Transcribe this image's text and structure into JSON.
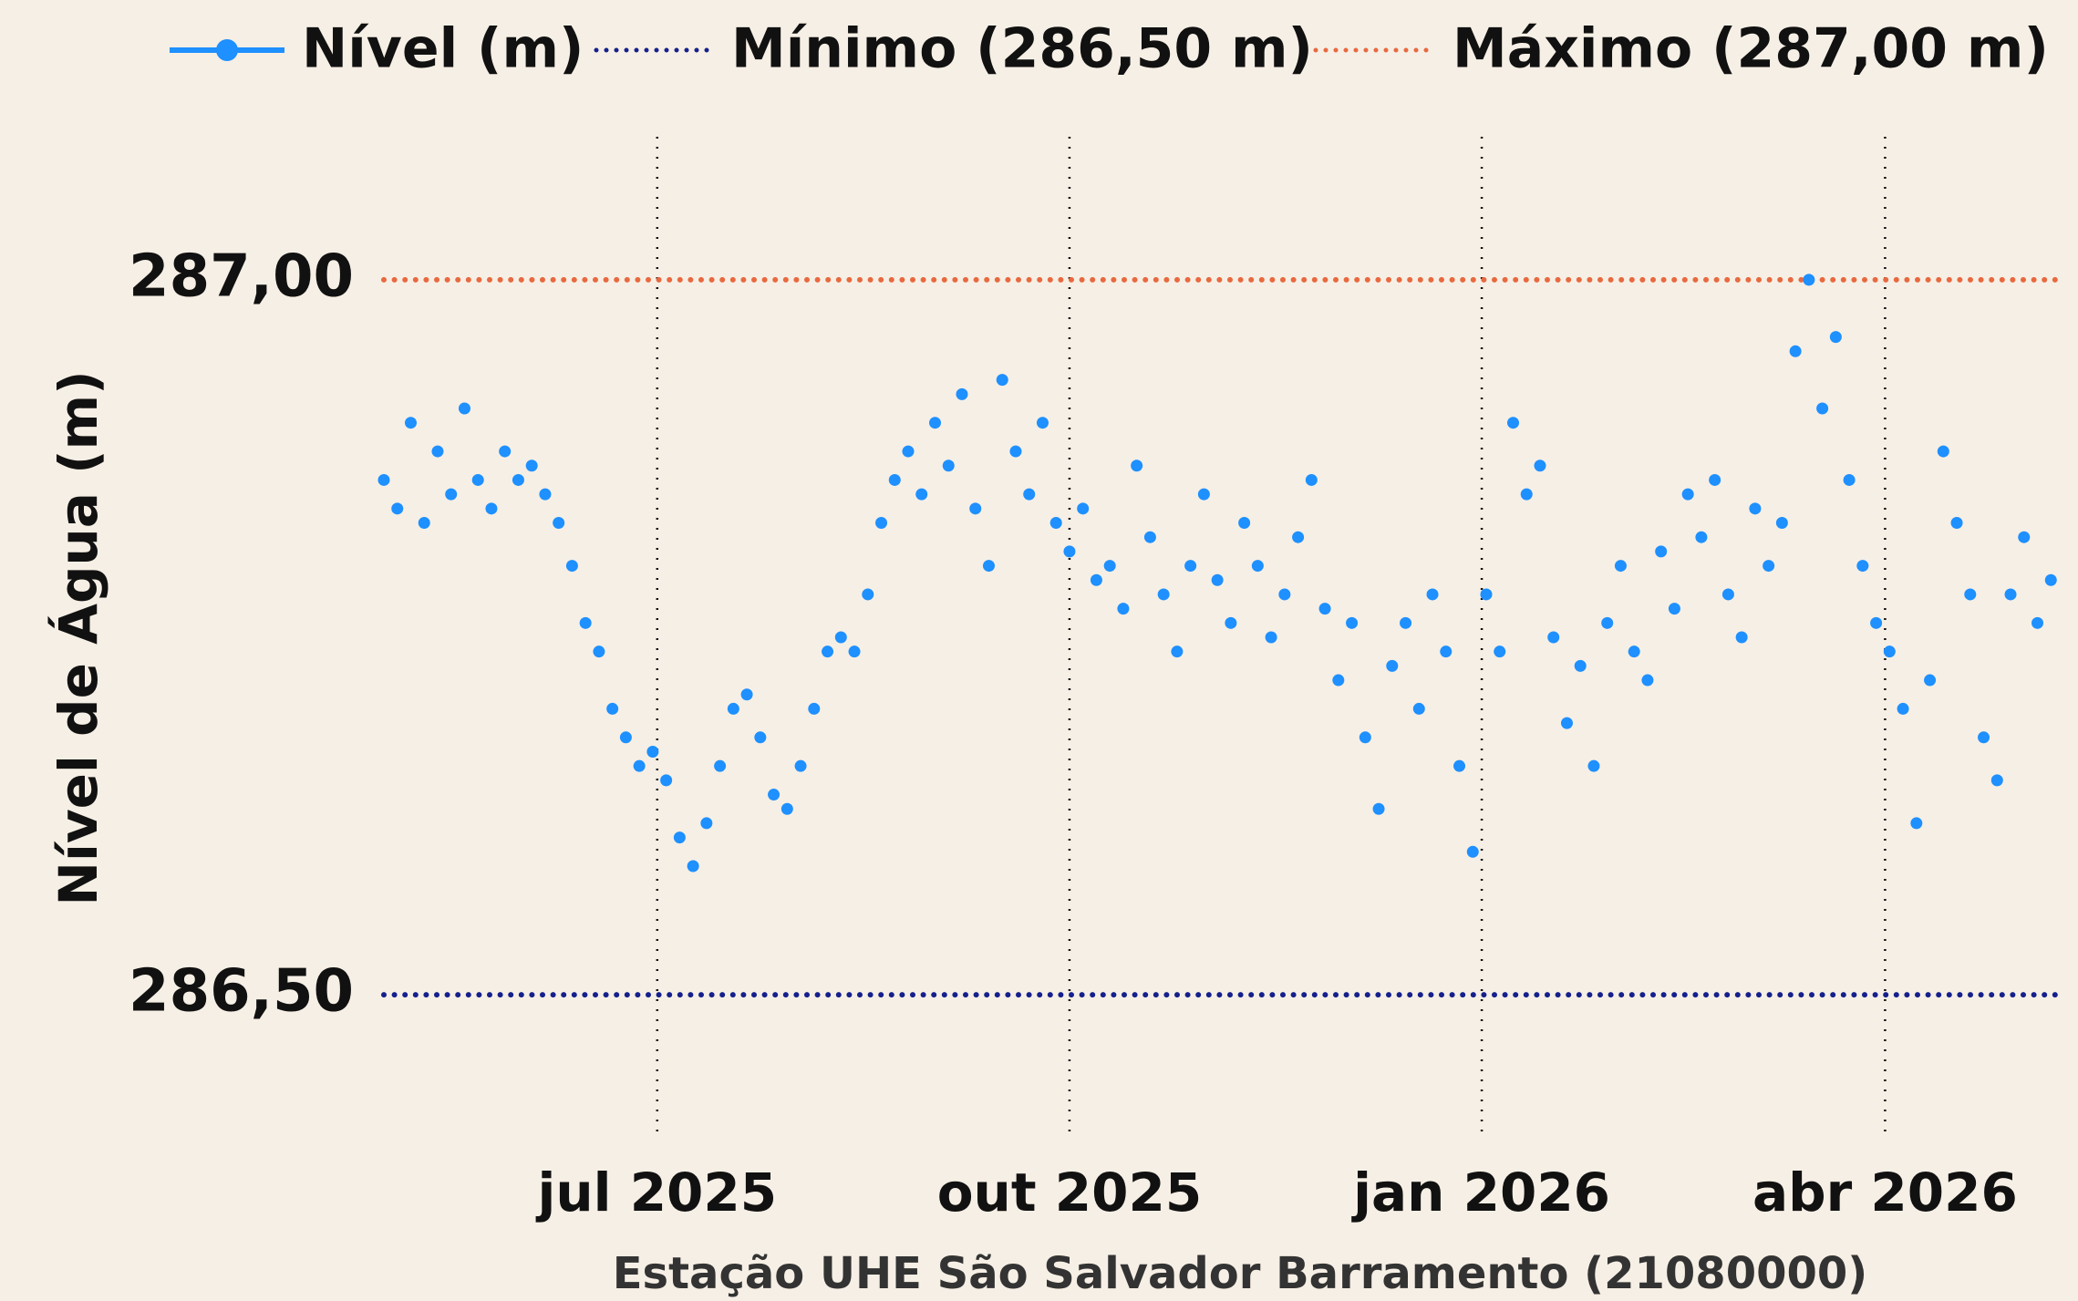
{
  "chart_data": {
    "type": "scatter",
    "axis_title_y": "Nível de Água (m)",
    "subtitle": "Estação UHE São Salvador Barramento (21080000)",
    "legend": "top",
    "xlim": [
      "2025-05-01",
      "2026-05-11"
    ],
    "xticks": [
      {
        "value": "2025-07-01",
        "label": "jul 2025"
      },
      {
        "value": "2025-10-01",
        "label": "out 2025"
      },
      {
        "value": "2026-01-01",
        "label": "jan 2026"
      },
      {
        "value": "2026-04-01",
        "label": "abr 2026"
      }
    ],
    "ylim": [
      286.4,
      287.1
    ],
    "yticks": [
      {
        "value": 286.5,
        "label": "286,50"
      },
      {
        "value": 287,
        "label": "287,00"
      }
    ],
    "x": [
      "2025-05-01",
      "2025-05-04",
      "2025-05-07",
      "2025-05-10",
      "2025-05-13",
      "2025-05-16",
      "2025-05-19",
      "2025-05-22",
      "2025-05-25",
      "2025-05-28",
      "2025-05-31",
      "2025-06-03",
      "2025-06-06",
      "2025-06-09",
      "2025-06-12",
      "2025-06-15",
      "2025-06-18",
      "2025-06-21",
      "2025-06-24",
      "2025-06-27",
      "2025-06-30",
      "2025-07-03",
      "2025-07-06",
      "2025-07-09",
      "2025-07-12",
      "2025-07-15",
      "2025-07-18",
      "2025-07-21",
      "2025-07-24",
      "2025-07-27",
      "2025-07-30",
      "2025-08-02",
      "2025-08-05",
      "2025-08-08",
      "2025-08-11",
      "2025-08-14",
      "2025-08-17",
      "2025-08-20",
      "2025-08-23",
      "2025-08-26",
      "2025-08-29",
      "2025-09-01",
      "2025-09-04",
      "2025-09-07",
      "2025-09-10",
      "2025-09-13",
      "2025-09-16",
      "2025-09-19",
      "2025-09-22",
      "2025-09-25",
      "2025-09-28",
      "2025-10-01",
      "2025-10-04",
      "2025-10-07",
      "2025-10-10",
      "2025-10-13",
      "2025-10-16",
      "2025-10-19",
      "2025-10-22",
      "2025-10-25",
      "2025-10-28",
      "2025-10-31",
      "2025-11-03",
      "2025-11-06",
      "2025-11-09",
      "2025-11-12",
      "2025-11-15",
      "2025-11-18",
      "2025-11-21",
      "2025-11-24",
      "2025-11-27",
      "2025-11-30",
      "2025-12-03",
      "2025-12-06",
      "2025-12-09",
      "2025-12-12",
      "2025-12-15",
      "2025-12-18",
      "2025-12-21",
      "2025-12-24",
      "2025-12-27",
      "2025-12-30",
      "2026-01-02",
      "2026-01-05",
      "2026-01-08",
      "2026-01-11",
      "2026-01-14",
      "2026-01-17",
      "2026-01-20",
      "2026-01-23",
      "2026-01-26",
      "2026-01-29",
      "2026-02-01",
      "2026-02-04",
      "2026-02-07",
      "2026-02-10",
      "2026-02-13",
      "2026-02-16",
      "2026-02-19",
      "2026-02-22",
      "2026-02-25",
      "2026-02-28",
      "2026-03-03",
      "2026-03-06",
      "2026-03-09",
      "2026-03-12",
      "2026-03-15",
      "2026-03-18",
      "2026-03-21",
      "2026-03-24",
      "2026-03-27",
      "2026-03-30",
      "2026-04-02",
      "2026-04-05",
      "2026-04-08",
      "2026-04-11",
      "2026-04-14",
      "2026-04-17",
      "2026-04-20",
      "2026-04-23",
      "2026-04-26",
      "2026-04-29",
      "2026-05-02",
      "2026-05-05",
      "2026-05-08"
    ],
    "series": [
      {
        "name": "Nível (m)",
        "color": "#1e90ff",
        "values": [
          286.86,
          286.84,
          286.9,
          286.83,
          286.88,
          286.85,
          286.91,
          286.86,
          286.84,
          286.88,
          286.86,
          286.87,
          286.85,
          286.83,
          286.8,
          286.76,
          286.74,
          286.7,
          286.68,
          286.66,
          286.67,
          286.65,
          286.61,
          286.59,
          286.62,
          286.66,
          286.7,
          286.71,
          286.68,
          286.64,
          286.63,
          286.66,
          286.7,
          286.74,
          286.75,
          286.74,
          286.78,
          286.83,
          286.86,
          286.88,
          286.85,
          286.9,
          286.87,
          286.92,
          286.84,
          286.8,
          286.93,
          286.88,
          286.85,
          286.9,
          286.83,
          286.81,
          286.84,
          286.79,
          286.8,
          286.77,
          286.87,
          286.82,
          286.78,
          286.74,
          286.8,
          286.85,
          286.79,
          286.76,
          286.83,
          286.8,
          286.75,
          286.78,
          286.82,
          286.86,
          286.77,
          286.72,
          286.76,
          286.68,
          286.63,
          286.73,
          286.76,
          286.7,
          286.78,
          286.74,
          286.66,
          286.6,
          286.78,
          286.74,
          286.9,
          286.85,
          286.87,
          286.75,
          286.69,
          286.73,
          286.66,
          286.76,
          286.8,
          286.74,
          286.72,
          286.81,
          286.77,
          286.85,
          286.82,
          286.86,
          286.78,
          286.75,
          286.84,
          286.8,
          286.83,
          286.95,
          287.0,
          286.91,
          286.96,
          286.86,
          286.8,
          286.76,
          286.74,
          286.7,
          286.62,
          286.72,
          286.88,
          286.83,
          286.78,
          286.68,
          286.65,
          286.78,
          286.82,
          286.76,
          286.79
        ]
      }
    ],
    "reference_lines": [
      {
        "name": "Mínimo (286,50 m)",
        "value": 286.5,
        "color": "#15208c"
      },
      {
        "name": "Máximo (287,00 m)",
        "value": 287,
        "color": "#e8693f"
      }
    ]
  }
}
